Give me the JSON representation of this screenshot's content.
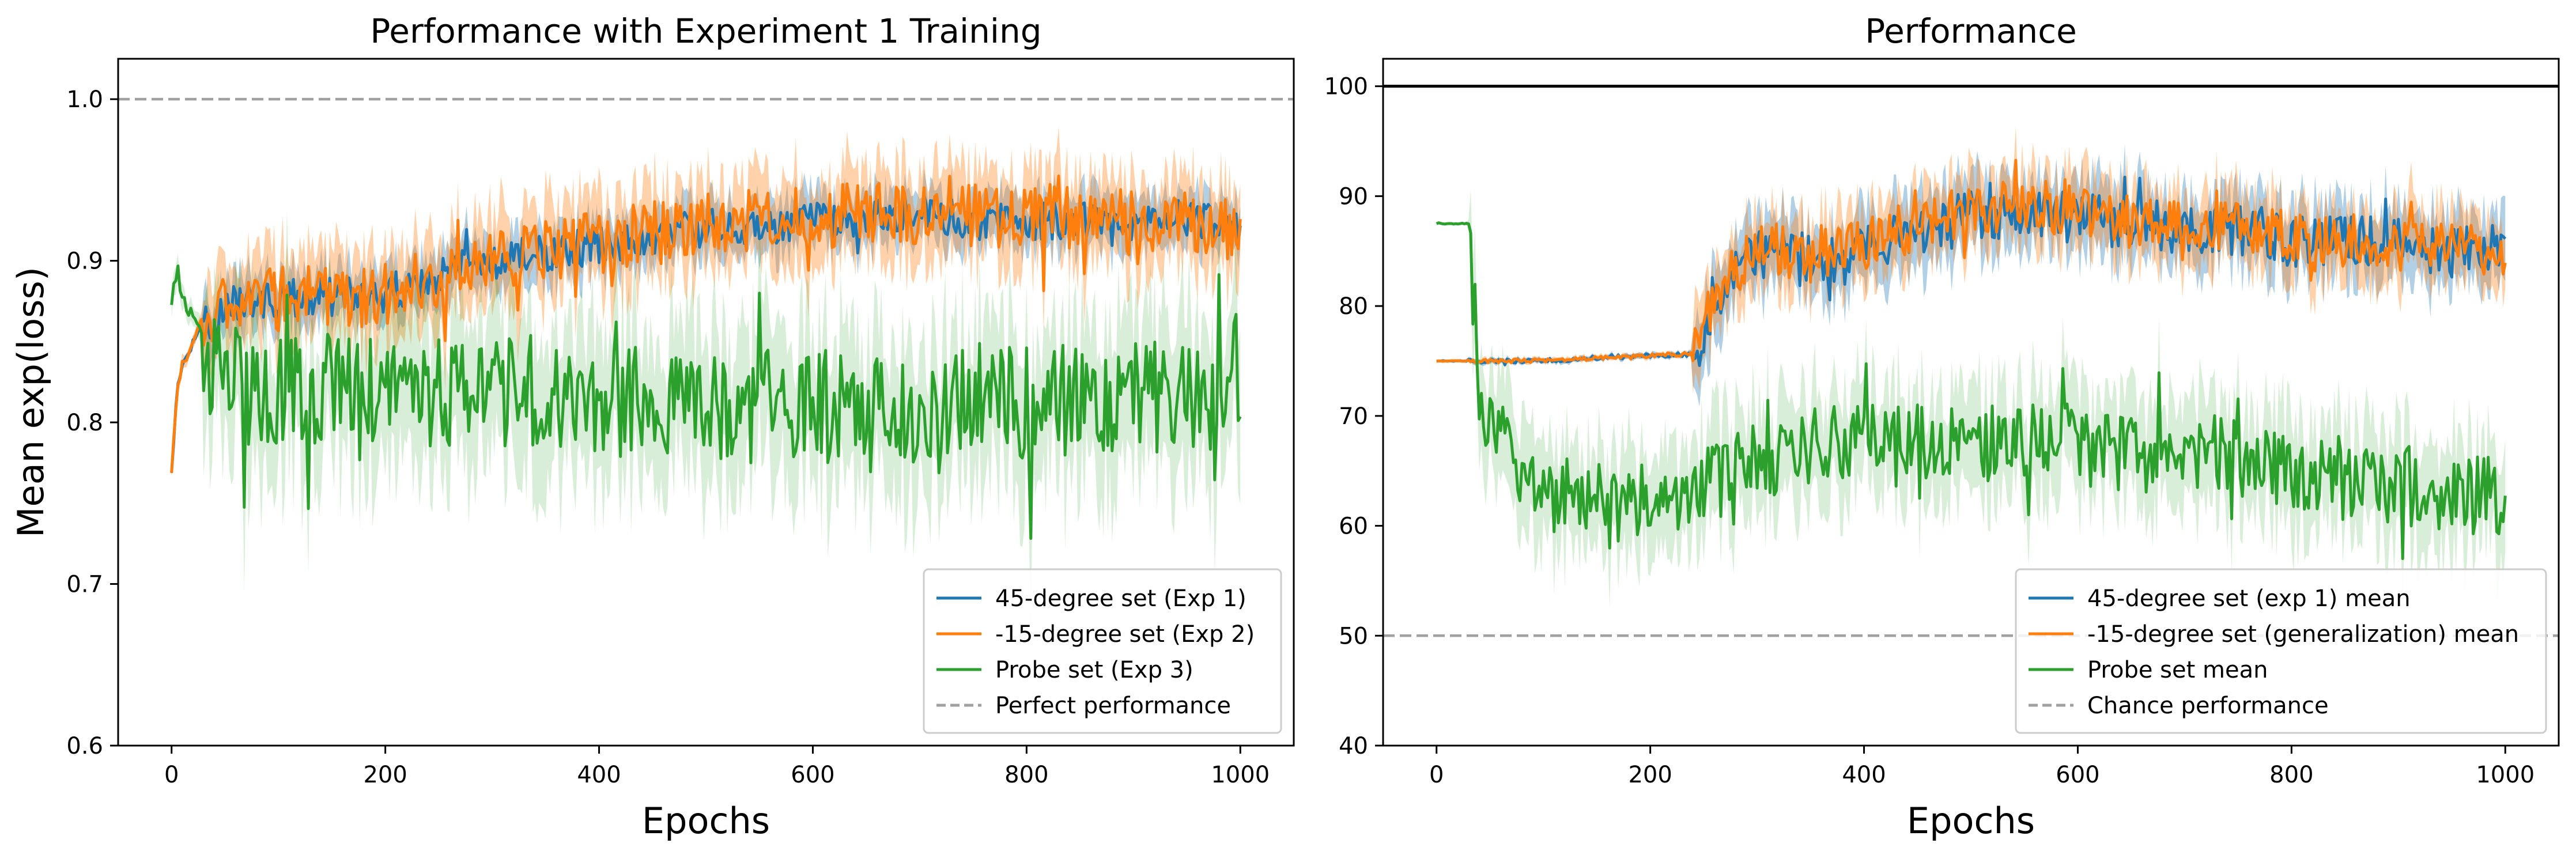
{
  "chart_data": [
    {
      "type": "line",
      "title": "Performance with Experiment 1 Training",
      "xlabel": "Epochs",
      "ylabel": "Mean exp(loss)",
      "xlim": [
        -50,
        1050
      ],
      "ylim": [
        0.6,
        1.025
      ],
      "xticks": [
        0,
        200,
        400,
        600,
        800,
        1000
      ],
      "xtick_labels": [
        "0",
        "200",
        "400",
        "600",
        "800",
        "1000"
      ],
      "yticks": [
        0.6,
        0.7,
        0.8,
        0.9,
        1.0
      ],
      "ytick_labels": [
        "0.6",
        "0.7",
        "0.8",
        "0.9",
        "1.0"
      ],
      "grid": false,
      "legend_position": "lower right",
      "series": [
        {
          "name": "45-degree set (Exp 1)",
          "color": "#1f77b4",
          "band": true,
          "x": [
            0,
            5,
            10,
            20,
            30,
            40,
            50,
            80,
            120,
            160,
            200,
            230,
            250,
            300,
            350,
            400,
            450,
            500,
            550,
            600,
            650,
            700,
            750,
            800,
            850,
            900,
            950,
            1000
          ],
          "y": [
            0.77,
            0.82,
            0.835,
            0.85,
            0.865,
            0.862,
            0.872,
            0.875,
            0.877,
            0.878,
            0.88,
            0.885,
            0.89,
            0.9,
            0.905,
            0.91,
            0.915,
            0.92,
            0.92,
            0.925,
            0.925,
            0.93,
            0.925,
            0.925,
            0.925,
            0.925,
            0.925,
            0.922
          ]
        },
        {
          "name": "-15-degree set (Exp 2)",
          "color": "#ff7f0e",
          "band": true,
          "x": [
            0,
            5,
            10,
            20,
            30,
            40,
            50,
            80,
            120,
            160,
            200,
            230,
            250,
            300,
            350,
            400,
            450,
            500,
            550,
            600,
            650,
            700,
            750,
            800,
            850,
            900,
            950,
            1000
          ],
          "y": [
            0.77,
            0.82,
            0.835,
            0.85,
            0.865,
            0.862,
            0.872,
            0.875,
            0.877,
            0.878,
            0.88,
            0.885,
            0.89,
            0.902,
            0.907,
            0.912,
            0.917,
            0.922,
            0.925,
            0.928,
            0.928,
            0.93,
            0.928,
            0.928,
            0.925,
            0.925,
            0.922,
            0.92
          ]
        },
        {
          "name": "Probe set (Exp 3)",
          "color": "#2ca02c",
          "band": true,
          "x": [
            0,
            5,
            10,
            20,
            30,
            40,
            50,
            80,
            120,
            160,
            200,
            250,
            300,
            350,
            400,
            450,
            500,
            550,
            600,
            650,
            700,
            750,
            800,
            850,
            900,
            950,
            1000
          ],
          "y": [
            0.875,
            0.895,
            0.88,
            0.865,
            0.85,
            0.83,
            0.825,
            0.82,
            0.818,
            0.817,
            0.818,
            0.82,
            0.822,
            0.82,
            0.815,
            0.812,
            0.81,
            0.812,
            0.81,
            0.81,
            0.81,
            0.815,
            0.812,
            0.815,
            0.815,
            0.815,
            0.815
          ]
        }
      ],
      "reference_lines": [
        {
          "name": "Perfect performance",
          "y": 1.0,
          "style": "dashed",
          "color": "#a0a0a0"
        }
      ]
    },
    {
      "type": "line",
      "title": "Performance",
      "xlabel": "Epochs",
      "ylabel": "",
      "xlim": [
        -50,
        1050
      ],
      "ylim": [
        40,
        102.5
      ],
      "xticks": [
        0,
        200,
        400,
        600,
        800,
        1000
      ],
      "xtick_labels": [
        "0",
        "200",
        "400",
        "600",
        "800",
        "1000"
      ],
      "yticks": [
        40,
        50,
        60,
        70,
        80,
        90,
        100
      ],
      "ytick_labels": [
        "40",
        "50",
        "60",
        "70",
        "80",
        "90",
        "100"
      ],
      "grid": false,
      "legend_position": "lower right",
      "series": [
        {
          "name": "45-degree set (exp 1) mean",
          "color": "#1f77b4",
          "band": true,
          "x": [
            0,
            20,
            40,
            100,
            150,
            200,
            240,
            260,
            280,
            300,
            350,
            400,
            450,
            500,
            550,
            600,
            650,
            700,
            750,
            800,
            850,
            900,
            950,
            1000
          ],
          "y": [
            75,
            75,
            75,
            75,
            75.3,
            75.5,
            75.6,
            80,
            83,
            85,
            84,
            85,
            87,
            88,
            89,
            88,
            87.5,
            87,
            87,
            86,
            86,
            85.5,
            85,
            86
          ]
        },
        {
          "name": "-15-degree set (generalization) mean",
          "color": "#ff7f0e",
          "band": true,
          "x": [
            0,
            20,
            40,
            100,
            150,
            200,
            240,
            260,
            280,
            300,
            350,
            400,
            450,
            500,
            550,
            600,
            650,
            700,
            750,
            800,
            850,
            900,
            950,
            1000
          ],
          "y": [
            75,
            75,
            75,
            75,
            75.3,
            75.5,
            75.6,
            80.5,
            83.5,
            85.5,
            84.5,
            85.5,
            87.5,
            88.5,
            89.5,
            88.5,
            88,
            87.5,
            87,
            86.5,
            86,
            86,
            85,
            85
          ]
        },
        {
          "name": "Probe set mean",
          "color": "#2ca02c",
          "band": true,
          "x": [
            0,
            20,
            30,
            35,
            40,
            50,
            70,
            100,
            150,
            200,
            250,
            300,
            350,
            400,
            450,
            500,
            550,
            600,
            650,
            700,
            750,
            800,
            850,
            900,
            950,
            1000
          ],
          "y": [
            87.5,
            87.5,
            87.5,
            80,
            72,
            70,
            66,
            63,
            62,
            62.5,
            63.5,
            66,
            67,
            68,
            67.5,
            67,
            68,
            67,
            66.5,
            67,
            66,
            65,
            64,
            63.5,
            63,
            62.5
          ]
        }
      ],
      "reference_lines": [
        {
          "name": "",
          "y": 100,
          "style": "solid",
          "color": "#000000"
        },
        {
          "name": "Chance performance",
          "y": 50,
          "style": "dashed",
          "color": "#a0a0a0"
        }
      ]
    }
  ]
}
